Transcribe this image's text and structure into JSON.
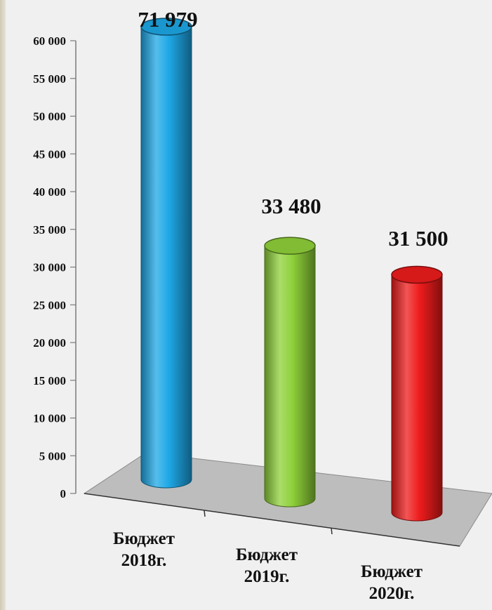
{
  "chart_data": {
    "type": "bar",
    "style": "3d-cylinder",
    "categories": [
      "Бюджет 2018г.",
      "Бюджет 2019г.",
      "Бюджет 2020г."
    ],
    "category_lines": [
      [
        "Бюджет",
        "2018г."
      ],
      [
        "Бюджет",
        "2019г."
      ],
      [
        "Бюджет",
        "2020г."
      ]
    ],
    "values": [
      71979,
      33480,
      31500
    ],
    "value_labels": [
      "71 979",
      "33 480",
      "31 500"
    ],
    "colors": [
      "#1ea8e6",
      "#8fd13a",
      "#ee1c1c"
    ],
    "ylim": [
      0,
      60000
    ],
    "yticks": [
      0,
      5000,
      10000,
      15000,
      20000,
      25000,
      30000,
      35000,
      40000,
      45000,
      50000,
      55000,
      60000
    ],
    "ytick_labels": [
      "0",
      "5 000",
      "10 000",
      "15 000",
      "20 000",
      "25 000",
      "30 000",
      "35 000",
      "40 000",
      "45 000",
      "50 000",
      "55 000",
      "60 000"
    ],
    "grid": false,
    "legend": "none",
    "title": "",
    "xlabel": "",
    "ylabel": ""
  }
}
